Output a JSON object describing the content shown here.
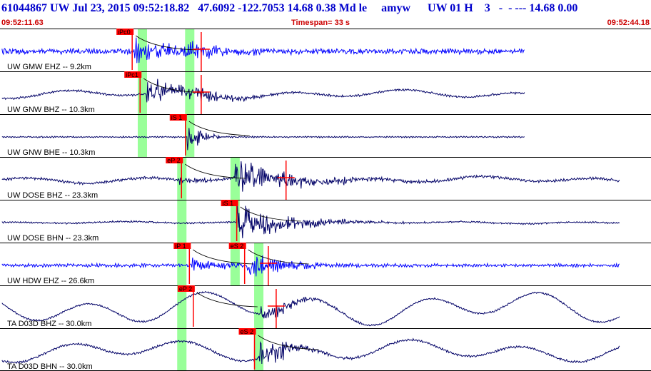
{
  "header": {
    "title": "61044867 UW Jul 23, 2015 09:52:18.82   47.6092 -122.7053 14.68 0.38 Md le     amyw      UW 01 H    3   -  - --- 14.68 0.00",
    "start_time": "09:52:11.63",
    "timespan": "Timespan=  33 s",
    "end_time": "09:52:44.18"
  },
  "colors": {
    "trace_blue": "#0000ff",
    "trace_navy": "#000066",
    "pick_red": "#ff0000",
    "window_green": "#99ff99",
    "title_blue": "#0000cc",
    "time_red": "#cc0000"
  },
  "panels": [
    {
      "label": "UW GMW EHZ -- 9.2km",
      "color": "#0000ff",
      "amp": 3,
      "noise": 0.3,
      "swell": 0,
      "pulses": [
        {
          "t": 6.8,
          "a": 15,
          "d": 2.3
        },
        {
          "t": 9.4,
          "a": 10,
          "d": 1.7
        }
      ],
      "end": 26.6,
      "picks": [
        {
          "label": "iPc0",
          "t": 6.7,
          "strong": true
        },
        {
          "label": "",
          "t": 10.2,
          "strong": false
        }
      ]
    },
    {
      "label": "UW GNW BHZ -- 10.3km",
      "color": "#000066",
      "amp": 1,
      "noise": 0.2,
      "swell": 4,
      "pulses": [
        {
          "t": 7.4,
          "a": 16,
          "d": 2.0
        },
        {
          "t": 9.6,
          "a": 8,
          "d": 1.6
        }
      ],
      "end": 26.6,
      "picks": [
        {
          "label": "iPc1",
          "t": 7.1,
          "strong": true
        },
        {
          "label": "",
          "t": 10.2,
          "strong": false
        }
      ]
    },
    {
      "label": "UW GNW BHE -- 10.3km",
      "color": "#000066",
      "amp": 0.6,
      "noise": 0.15,
      "swell": 0,
      "pulses": [
        {
          "t": 9.5,
          "a": 18,
          "d": 0.7
        }
      ],
      "end": 26.6,
      "picks": [
        {
          "label": "iS 1",
          "t": 9.4,
          "strong": true
        }
      ]
    },
    {
      "label": "UW DOSE BHZ -- 23.3km",
      "color": "#000066",
      "amp": 1.2,
      "noise": 0.25,
      "swell": 3,
      "pulses": [
        {
          "t": 9.1,
          "a": 5,
          "d": 1.2
        },
        {
          "t": 11.9,
          "a": 18,
          "d": 3.2
        }
      ],
      "end": 31.4,
      "picks": [
        {
          "label": "eP 2",
          "t": 9.2,
          "strong": true
        },
        {
          "label": "",
          "t": 14.5,
          "strong": false
        }
      ]
    },
    {
      "label": "UW DOSE BHN -- 23.3km",
      "color": "#000066",
      "amp": 0.7,
      "noise": 0.15,
      "swell": 1,
      "pulses": [
        {
          "t": 12.0,
          "a": 22,
          "d": 2.4
        }
      ],
      "end": 31.4,
      "picks": [
        {
          "label": "iS 1",
          "t": 12.0,
          "strong": true
        }
      ]
    },
    {
      "label": "UW HDW EHZ -- 26.6km",
      "color": "#0000ff",
      "amp": 1.5,
      "noise": 0.3,
      "swell": 0,
      "pulses": [
        {
          "t": 9.6,
          "a": 8,
          "d": 1.8
        },
        {
          "t": 12.5,
          "a": 14,
          "d": 2.0
        }
      ],
      "end": 31.4,
      "picks": [
        {
          "label": "iP 1",
          "t": 9.6,
          "strong": true
        },
        {
          "label": "eS 2",
          "t": 12.4,
          "strong": true
        },
        {
          "label": "",
          "t": 13.6,
          "strong": false
        }
      ]
    },
    {
      "label": "TA D03D BHZ -- 30.0km",
      "color": "#000066",
      "amp": 0.8,
      "noise": 0.15,
      "swell": 15,
      "pulses": [
        {
          "t": 13.2,
          "a": 12,
          "d": 1.5
        }
      ],
      "end": 31.4,
      "picks": [
        {
          "label": "eP 2",
          "t": 9.8,
          "strong": true
        },
        {
          "label": "",
          "t": 14.0,
          "strong": false
        }
      ]
    },
    {
      "label": "TA D03D BHN -- 30.0km",
      "color": "#000066",
      "amp": 1,
      "noise": 0.2,
      "swell": 10,
      "pulses": [
        {
          "t": 13.1,
          "a": 22,
          "d": 1.4
        }
      ],
      "end": 31.4,
      "picks": [
        {
          "label": "eS 2",
          "t": 12.9,
          "strong": true
        }
      ]
    }
  ],
  "windows": [
    {
      "panel_from": 0,
      "panel_to": 2,
      "t": 7.2
    },
    {
      "panel_from": 0,
      "panel_to": 2,
      "t": 9.6
    },
    {
      "panel_from": 3,
      "panel_to": 7,
      "t": 9.2
    },
    {
      "panel_from": 3,
      "panel_to": 5,
      "t": 11.9
    },
    {
      "panel_from": 5,
      "panel_to": 7,
      "t": 13.1
    }
  ]
}
